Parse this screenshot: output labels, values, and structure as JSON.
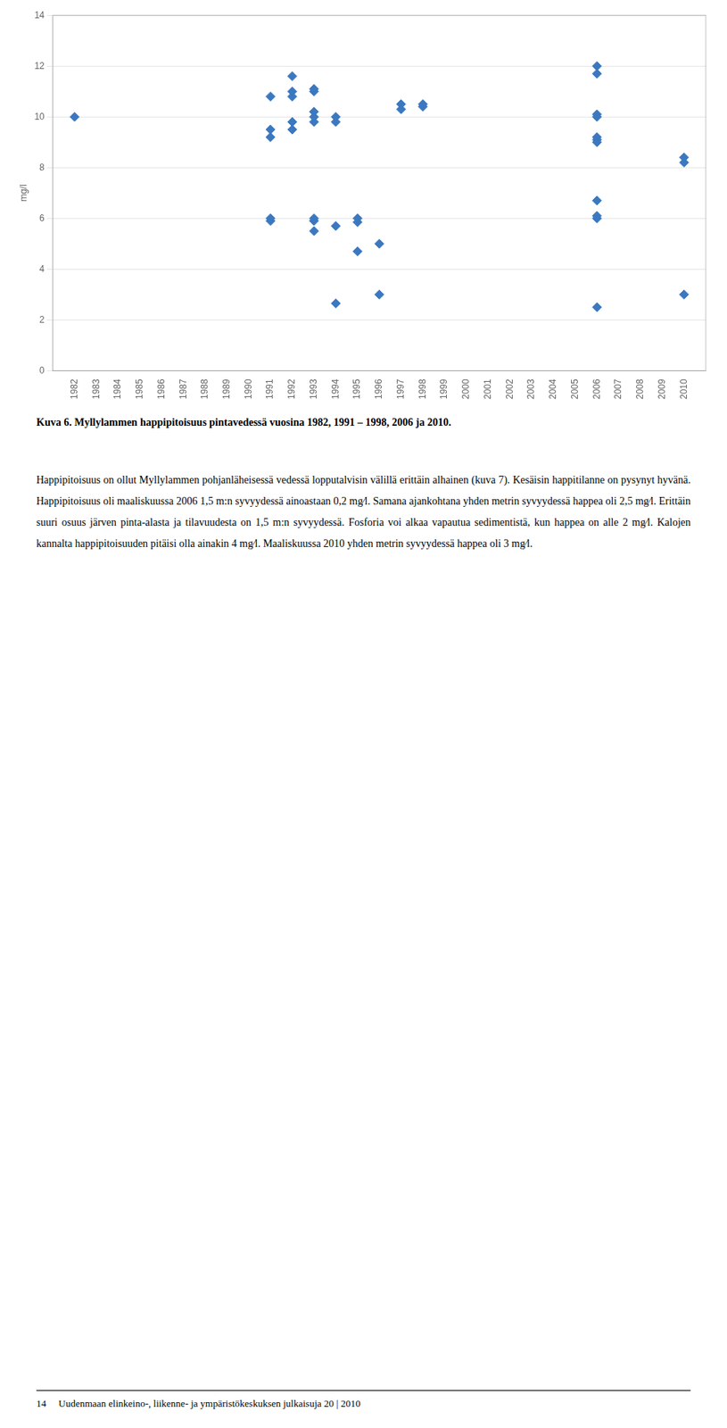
{
  "chart_data": {
    "type": "scatter",
    "y_label": "mg/l",
    "x": [
      1982,
      1991,
      1991,
      1991,
      1991,
      1991,
      1992,
      1992,
      1992,
      1992,
      1992,
      1993,
      1993,
      1993,
      1993,
      1993,
      1993,
      1993,
      1993,
      1994,
      1994,
      1994,
      1994,
      1995,
      1995,
      1995,
      1996,
      1996,
      1997,
      1997,
      1998,
      1998,
      2006,
      2006,
      2006,
      2006,
      2006,
      2006,
      2006,
      2006,
      2006,
      2006,
      2006,
      2010,
      2010,
      2010
    ],
    "values": [
      10.0,
      5.9,
      6.0,
      9.2,
      9.5,
      10.8,
      9.5,
      9.8,
      10.8,
      11.0,
      11.6,
      5.5,
      5.9,
      6.0,
      9.8,
      10.0,
      10.2,
      11.0,
      11.1,
      2.65,
      5.7,
      9.8,
      10.0,
      4.7,
      5.85,
      6.0,
      3.0,
      5.0,
      10.3,
      10.5,
      10.4,
      10.5,
      2.5,
      6.0,
      6.1,
      6.7,
      9.0,
      9.1,
      9.2,
      10.0,
      10.1,
      12.0,
      11.7,
      3.0,
      8.2,
      8.4
    ],
    "color": "#3b78c0",
    "marker": "diamond",
    "xlim": [
      1981,
      2011
    ],
    "xticks": [
      1982,
      1983,
      1984,
      1985,
      1986,
      1987,
      1988,
      1989,
      1990,
      1991,
      1992,
      1993,
      1994,
      1995,
      1996,
      1997,
      1998,
      1999,
      2000,
      2001,
      2002,
      2003,
      2004,
      2005,
      2006,
      2007,
      2008,
      2009,
      2010
    ],
    "ylim": [
      0,
      14
    ],
    "yticks": [
      0,
      2,
      4,
      6,
      8,
      10,
      12,
      14
    ],
    "grid": "y",
    "annotations": [
      "Kuva 6. Myllylammen happipitoisuus pintavedessä vuosina 1982, 1991 – 1998, 2006 ja 2010.",
      "Happipitoisuus on ollut Myllylammen pohjanläheisessä vedessä lopputalvisin välillä erittäin alhainen (kuva 7). Kesäisin happitilanne on pysynyt hyvänä. Happipitoisuus oli maaliskuussa 2006 1,5 m:n syvyydessä ainoastaan 0,2 mg⁄l. Samana ajankohtana yhden metrin syvyydessä happea oli 2,5 mg⁄l. Erittäin suuri osuus järven pinta-alasta ja tilavuudesta on 1,5 m:n syvyydessä. Fosforia voi alkaa vapautua sedimentistä, kun happea on alle 2 mg⁄l. Kalojen kannalta happipitoisuuden pitäisi olla ainakin 4 mg⁄l. Maaliskuussa 2010 yhden metrin syvyydessä happea oli 3 mg⁄l.",
      "14     Uudenmaan elinkeino-, liikenne- ja ympäristökeskuksen julkaisuja 20 | 2010"
    ]
  }
}
